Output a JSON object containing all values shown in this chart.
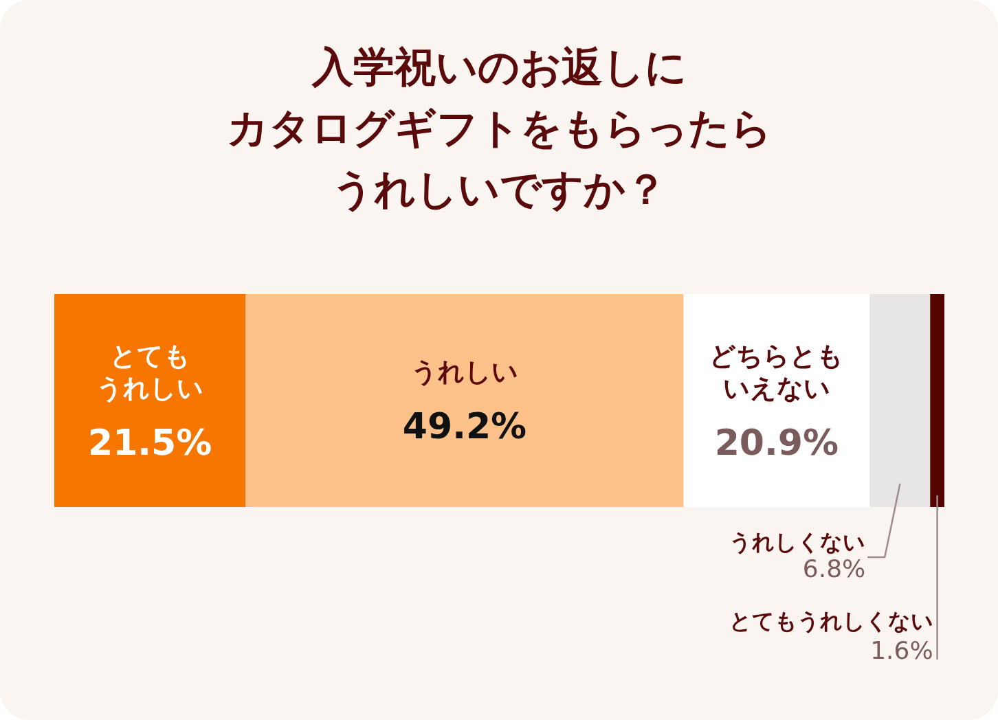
{
  "chart_data": {
    "type": "bar",
    "orientation": "horizontal",
    "stacked": true,
    "title": "入学祝いのお返しにカタログギフトをもらったらうれしいですか？",
    "categories": [
      null
    ],
    "xlim": [
      0,
      100
    ],
    "series": [
      {
        "name": "とてもうれしい",
        "color": "#f67600",
        "values": [
          21.5
        ],
        "value_labels": [
          "21.5%"
        ]
      },
      {
        "name": "うれしい",
        "color": "#fcc189",
        "values": [
          49.2
        ],
        "value_labels": [
          "49.2%"
        ]
      },
      {
        "name": "どちらともいえない",
        "color": "#ffffff",
        "values": [
          20.9
        ],
        "value_labels": [
          "20.9%"
        ]
      },
      {
        "name": "うれしくない",
        "color": "#e7e6e4",
        "values": [
          6.8
        ],
        "value_labels": [
          "6.8%"
        ]
      },
      {
        "name": "とてもうれしくない",
        "color": "#550400",
        "values": [
          1.6
        ],
        "value_labels": [
          "1.6%"
        ]
      }
    ]
  }
}
